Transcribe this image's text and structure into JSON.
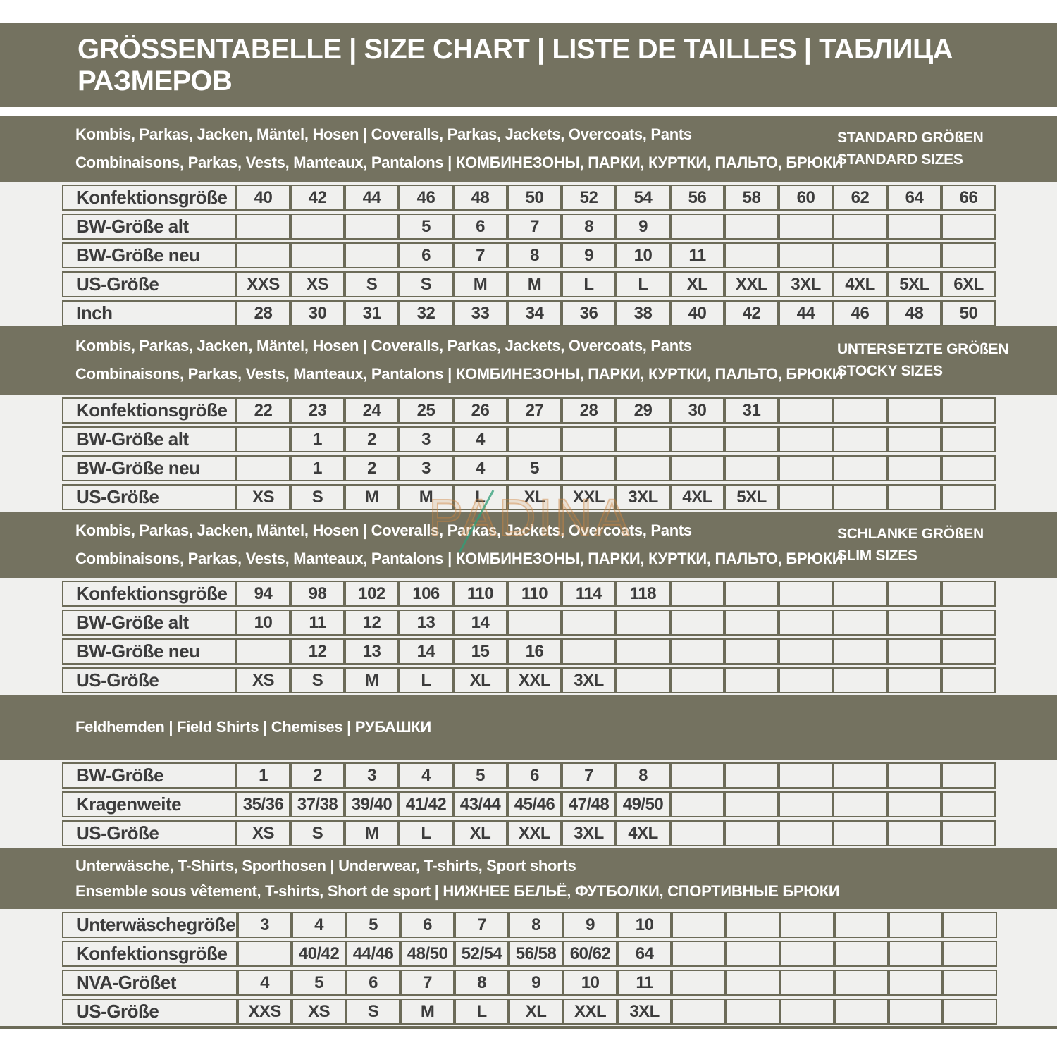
{
  "page": {
    "title": "GRÖSSENTABELLE | SIZE CHART | LISTE DE TAILLES | ТАБЛИЦА РАЗМЕРОВ",
    "watermark": "PADINA"
  },
  "colors": {
    "olive_band": "#747260",
    "table_background": "#f0f0ee",
    "grid_border": "#6c6b58",
    "cell_text": "#3c3c3c",
    "header_text": "#ffffff",
    "watermark_orange": "#ce8640",
    "watermark_green": "#2f9e78"
  },
  "sections": [
    {
      "header_line1": "Kombis, Parkas, Jacken, Mäntel, Hosen | Coveralls, Parkas, Jackets, Overcoats, Pants",
      "header_line2": "Combinaisons, Parkas, Vests, Manteaux, Pantalons | КОМБИНЕЗОНЫ, ПАРКИ, КУРТКИ, ПАЛЬТО, БРЮКИ",
      "side_label_line1": "STANDARD GRÖßEN",
      "side_label_line2": "STANDARD SIZES",
      "columns": 14,
      "rows": [
        {
          "label": "Konfektionsgröße",
          "cells": [
            "40",
            "42",
            "44",
            "46",
            "48",
            "50",
            "52",
            "54",
            "56",
            "58",
            "60",
            "62",
            "64",
            "66"
          ]
        },
        {
          "label": "BW-Größe alt",
          "cells": [
            "",
            "",
            "",
            "5",
            "6",
            "7",
            "8",
            "9",
            "",
            "",
            "",
            "",
            "",
            ""
          ]
        },
        {
          "label": "BW-Größe neu",
          "cells": [
            "",
            "",
            "",
            "6",
            "7",
            "8",
            "9",
            "10",
            "11",
            "",
            "",
            "",
            "",
            ""
          ]
        },
        {
          "label": "US-Größe",
          "cells": [
            "XXS",
            "XS",
            "S",
            "S",
            "M",
            "M",
            "L",
            "L",
            "XL",
            "XXL",
            "3XL",
            "4XL",
            "5XL",
            "6XL"
          ]
        },
        {
          "label": "Inch",
          "cells": [
            "28",
            "30",
            "31",
            "32",
            "33",
            "34",
            "36",
            "38",
            "40",
            "42",
            "44",
            "46",
            "48",
            "50"
          ]
        }
      ]
    },
    {
      "header_line1": "Kombis, Parkas, Jacken, Mäntel, Hosen | Coveralls, Parkas, Jackets, Overcoats, Pants",
      "header_line2": "Combinaisons, Parkas, Vests, Manteaux, Pantalons | КОМБИНЕЗОНЫ, ПАРКИ, КУРТКИ, ПАЛЬТО, БРЮКИ",
      "side_label_line1": "UNTERSETZTE GRÖßEN",
      "side_label_line2": "STOCKY SIZES",
      "columns": 14,
      "rows": [
        {
          "label": "Konfektionsgröße",
          "cells": [
            "22",
            "23",
            "24",
            "25",
            "26",
            "27",
            "28",
            "29",
            "30",
            "31",
            "",
            "",
            "",
            ""
          ]
        },
        {
          "label": "BW-Größe alt",
          "cells": [
            "",
            "1",
            "2",
            "3",
            "4",
            "",
            "",
            "",
            "",
            "",
            "",
            "",
            "",
            ""
          ]
        },
        {
          "label": "BW-Größe neu",
          "cells": [
            "",
            "1",
            "2",
            "3",
            "4",
            "5",
            "",
            "",
            "",
            "",
            "",
            "",
            "",
            ""
          ]
        },
        {
          "label": "US-Größe",
          "cells": [
            "XS",
            "S",
            "M",
            "M",
            "L",
            "XL",
            "XXL",
            "3XL",
            "4XL",
            "5XL",
            "",
            "",
            "",
            ""
          ]
        }
      ]
    },
    {
      "header_line1": "Kombis, Parkas, Jacken, Mäntel, Hosen | Coveralls, Parkas, Jackets, Overcoats, Pants",
      "header_line2": "Combinaisons, Parkas, Vests, Manteaux, Pantalons | КОМБИНЕЗОНЫ, ПАРКИ, КУРТКИ, ПАЛЬТО, БРЮКИ",
      "side_label_line1": "SCHLANKE GRÖßEN",
      "side_label_line2": "SLIM SIZES",
      "columns": 14,
      "rows": [
        {
          "label": "Konfektionsgröße",
          "cells": [
            "94",
            "98",
            "102",
            "106",
            "110",
            "110",
            "114",
            "118",
            "",
            "",
            "",
            "",
            "",
            ""
          ]
        },
        {
          "label": "BW-Größe alt",
          "cells": [
            "10",
            "11",
            "12",
            "13",
            "14",
            "",
            "",
            "",
            "",
            "",
            "",
            "",
            "",
            ""
          ]
        },
        {
          "label": "BW-Größe neu",
          "cells": [
            "",
            "12",
            "13",
            "14",
            "15",
            "16",
            "",
            "",
            "",
            "",
            "",
            "",
            "",
            ""
          ]
        },
        {
          "label": "US-Größe",
          "cells": [
            "XS",
            "S",
            "M",
            "L",
            "XL",
            "XXL",
            "3XL",
            "",
            "",
            "",
            "",
            "",
            "",
            ""
          ]
        }
      ]
    },
    {
      "header_line1": "Feldhemden | Field Shirts | Chemises | РУБАШКИ",
      "header_line2": "",
      "side_label_line1": "",
      "side_label_line2": "",
      "columns": 14,
      "rows": [
        {
          "label": "BW-Größe",
          "cells": [
            "1",
            "2",
            "3",
            "4",
            "5",
            "6",
            "7",
            "8",
            "",
            "",
            "",
            "",
            "",
            ""
          ]
        },
        {
          "label": "Kragenweite",
          "cells": [
            "35/36",
            "37/38",
            "39/40",
            "41/42",
            "43/44",
            "45/46",
            "47/48",
            "49/50",
            "",
            "",
            "",
            "",
            "",
            ""
          ]
        },
        {
          "label": "US-Größe",
          "cells": [
            "XS",
            "S",
            "M",
            "L",
            "XL",
            "XXL",
            "3XL",
            "4XL",
            "",
            "",
            "",
            "",
            "",
            ""
          ]
        }
      ]
    },
    {
      "header_line1": "Unterwäsche, T-Shirts, Sporthosen | Underwear, T-shirts, Sport shorts",
      "header_line2": "Ensemble sous vêtement, T-shirts, Short de sport | НИЖНЕЕ БЕЛЬЁ, ФУТБОЛКИ, СПОРТИВНЫЕ БРЮКИ",
      "side_label_line1": "",
      "side_label_line2": "",
      "columns": 14,
      "rows": [
        {
          "label": "Unterwäschegröße",
          "cells": [
            "3",
            "4",
            "5",
            "6",
            "7",
            "8",
            "9",
            "10",
            "",
            "",
            "",
            "",
            "",
            ""
          ]
        },
        {
          "label": "Konfektionsgröße",
          "cells": [
            "",
            "40/42",
            "44/46",
            "48/50",
            "52/54",
            "56/58",
            "60/62",
            "64",
            "",
            "",
            "",
            "",
            "",
            ""
          ]
        },
        {
          "label": "NVA-Größet",
          "cells": [
            "4",
            "5",
            "6",
            "7",
            "8",
            "9",
            "10",
            "11",
            "",
            "",
            "",
            "",
            "",
            ""
          ]
        },
        {
          "label": "US-Größe",
          "cells": [
            "XXS",
            "XS",
            "S",
            "M",
            "L",
            "XL",
            "XXL",
            "3XL",
            "",
            "",
            "",
            "",
            "",
            ""
          ]
        }
      ]
    }
  ]
}
